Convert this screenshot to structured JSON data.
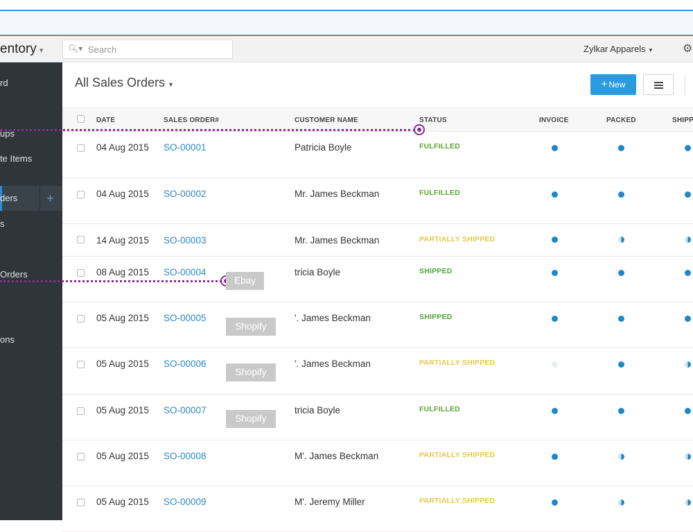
{
  "header": {
    "brand": "entory",
    "search_placeholder": "Search",
    "organization": "Zylkar Apparels"
  },
  "sidebar": {
    "items": [
      {
        "label": "rd"
      },
      {
        "label": "ups"
      },
      {
        "label": "te Items"
      },
      {
        "label": "ders"
      },
      {
        "label": "s"
      },
      {
        "label": "Orders"
      },
      {
        "label": "ons"
      }
    ],
    "add_glyph": "+"
  },
  "page": {
    "title": "All Sales Orders",
    "new_button": "New"
  },
  "table": {
    "columns": [
      "DATE",
      "SALES ORDER#",
      "CUSTOMER NAME",
      "STATUS",
      "INVOICE",
      "PACKED",
      "SHIPP"
    ],
    "rows": [
      {
        "date": "04 Aug 2015",
        "so": "SO-00001",
        "customer": "Patricia Boyle",
        "status": "FULFILLED",
        "tag": "",
        "invoice": "full",
        "packed": "full",
        "shipped": "full"
      },
      {
        "date": "04 Aug 2015",
        "so": "SO-00002",
        "customer": "Mr. James Beckman",
        "status": "FULFILLED",
        "tag": "",
        "invoice": "full",
        "packed": "full",
        "shipped": "full"
      },
      {
        "date": "14 Aug 2015",
        "so": "SO-00003",
        "customer": "Mr. James Beckman",
        "status": "PARTIALLY SHIPPED",
        "tag": "",
        "invoice": "full",
        "packed": "half",
        "shipped": "half"
      },
      {
        "date": "08 Aug 2015",
        "so": "SO-00004",
        "customer": "tricia Boyle",
        "status": "SHIPPED",
        "tag": "Ebay",
        "invoice": "full",
        "packed": "full",
        "shipped": "full"
      },
      {
        "date": "05 Aug 2015",
        "so": "SO-00005",
        "customer": "'. James Beckman",
        "status": "SHIPPED",
        "tag": "Shopify",
        "invoice": "full",
        "packed": "full",
        "shipped": "full"
      },
      {
        "date": "05 Aug 2015",
        "so": "SO-00006",
        "customer": "'. James Beckman",
        "status": "PARTIALLY SHIPPED",
        "tag": "Shopify",
        "invoice": "empty",
        "packed": "full",
        "shipped": "half"
      },
      {
        "date": "05 Aug 2015",
        "so": "SO-00007",
        "customer": "tricia Boyle",
        "status": "FULFILLED",
        "tag": "Shopify",
        "invoice": "full",
        "packed": "full",
        "shipped": "full"
      },
      {
        "date": "05 Aug 2015",
        "so": "SO-00008",
        "customer": "M'. James Beckman",
        "status": "PARTIALLY SHIPPED",
        "tag": "",
        "invoice": "full",
        "packed": "half",
        "shipped": "half"
      },
      {
        "date": "05 Aug 2015",
        "so": "SO-00009",
        "customer": "M'. Jeremy Miller",
        "status": "PARTIALLY SHIPPED",
        "tag": "",
        "invoice": "full",
        "packed": "half",
        "shipped": "half"
      }
    ]
  },
  "colors": {
    "accent": "#2b9be0",
    "sidebar": "#2e353b",
    "fulfilled": "#5fa32e",
    "partially_shipped": "#e6c84a",
    "annotation": "#8b2a8f"
  }
}
